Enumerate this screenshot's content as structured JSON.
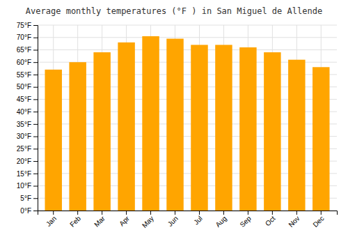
{
  "chart_data": {
    "type": "bar",
    "title": "Average monthly temperatures (°F ) in San Miguel de Allende",
    "categories": [
      "Jan",
      "Feb",
      "Mar",
      "Apr",
      "May",
      "Jun",
      "Jul",
      "Aug",
      "Sep",
      "Oct",
      "Nov",
      "Dec"
    ],
    "values": [
      57,
      60,
      64,
      68,
      70.5,
      69.5,
      67,
      67,
      66,
      64,
      61,
      58
    ],
    "color": "#FFA500",
    "ylim": [
      0,
      75
    ],
    "yticks": [
      {
        "value": 0,
        "label": "0°F"
      },
      {
        "value": 5,
        "label": "5°F"
      },
      {
        "value": 10,
        "label": "10°F"
      },
      {
        "value": 15,
        "label": "15°F"
      },
      {
        "value": 20,
        "label": "20°F"
      },
      {
        "value": 25,
        "label": "25°F"
      },
      {
        "value": 30,
        "label": "30°F"
      },
      {
        "value": 35,
        "label": "35°F"
      },
      {
        "value": 40,
        "label": "40°F"
      },
      {
        "value": 45,
        "label": "45°F"
      },
      {
        "value": 50,
        "label": "50°F"
      },
      {
        "value": 55,
        "label": "55°F"
      },
      {
        "value": 60,
        "label": "60°F"
      },
      {
        "value": 65,
        "label": "65°F"
      },
      {
        "value": 70,
        "label": "70°F"
      },
      {
        "value": 75,
        "label": "75°F"
      }
    ],
    "grid": true
  }
}
